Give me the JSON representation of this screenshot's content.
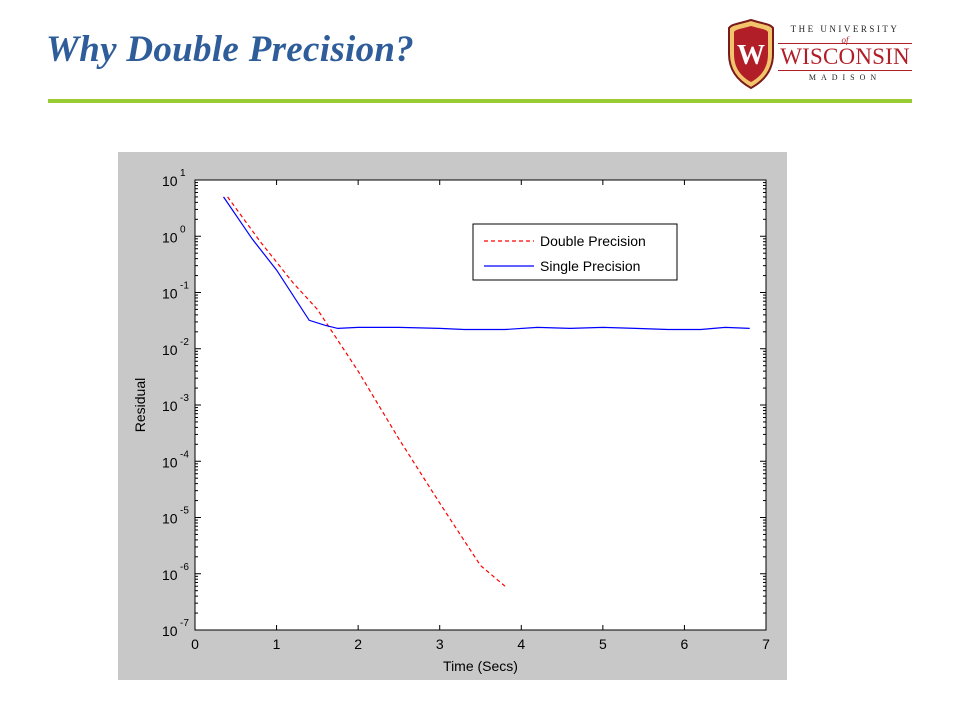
{
  "slide": {
    "title": "Why Double Precision?",
    "accent_color": "#99cc33",
    "title_color": "#2f5d9a"
  },
  "logo": {
    "line_top": "THE UNIVERSITY",
    "line_of": "of",
    "line_main": "WISCONSIN",
    "line_bottom": "MADISON",
    "crest_letter": "W",
    "color": "#b21e28"
  },
  "chart_data": {
    "type": "line",
    "title": "",
    "xlabel": "Time (Secs)",
    "ylabel": "Residual",
    "xlim": [
      0,
      7
    ],
    "ylim_log10": [
      -7,
      1
    ],
    "yscale": "log",
    "grid": false,
    "legend_position": "top-right",
    "x_ticks": [
      "0",
      "1",
      "2",
      "3",
      "4",
      "5",
      "6",
      "7"
    ],
    "y_ticks": [
      {
        "base": "10",
        "exp": "1"
      },
      {
        "base": "10",
        "exp": "0"
      },
      {
        "base": "10",
        "exp": "-1"
      },
      {
        "base": "10",
        "exp": "-2"
      },
      {
        "base": "10",
        "exp": "-3"
      },
      {
        "base": "10",
        "exp": "-4"
      },
      {
        "base": "10",
        "exp": "-5"
      },
      {
        "base": "10",
        "exp": "-6"
      },
      {
        "base": "10",
        "exp": "-7"
      }
    ],
    "series": [
      {
        "name": "Double Precision",
        "color": "#ff0000",
        "style": "dashed",
        "x": [
          0.4,
          0.8,
          1.2,
          1.5,
          2.0,
          2.5,
          3.0,
          3.5,
          3.8
        ],
        "y": [
          5.0,
          0.8,
          0.15,
          0.05,
          0.004,
          0.00025,
          1.8e-05,
          1.4e-06,
          6e-07
        ]
      },
      {
        "name": "Single Precision",
        "color": "#0000ff",
        "style": "solid",
        "x": [
          0.35,
          0.7,
          1.0,
          1.4,
          1.6,
          1.75,
          2.0,
          2.5,
          3.0,
          3.3,
          3.8,
          4.2,
          4.6,
          5.0,
          5.4,
          5.8,
          6.2,
          6.5,
          6.8
        ],
        "y": [
          5.0,
          0.9,
          0.25,
          0.032,
          0.026,
          0.023,
          0.024,
          0.024,
          0.023,
          0.022,
          0.022,
          0.024,
          0.023,
          0.024,
          0.023,
          0.022,
          0.022,
          0.024,
          0.023
        ]
      }
    ]
  }
}
